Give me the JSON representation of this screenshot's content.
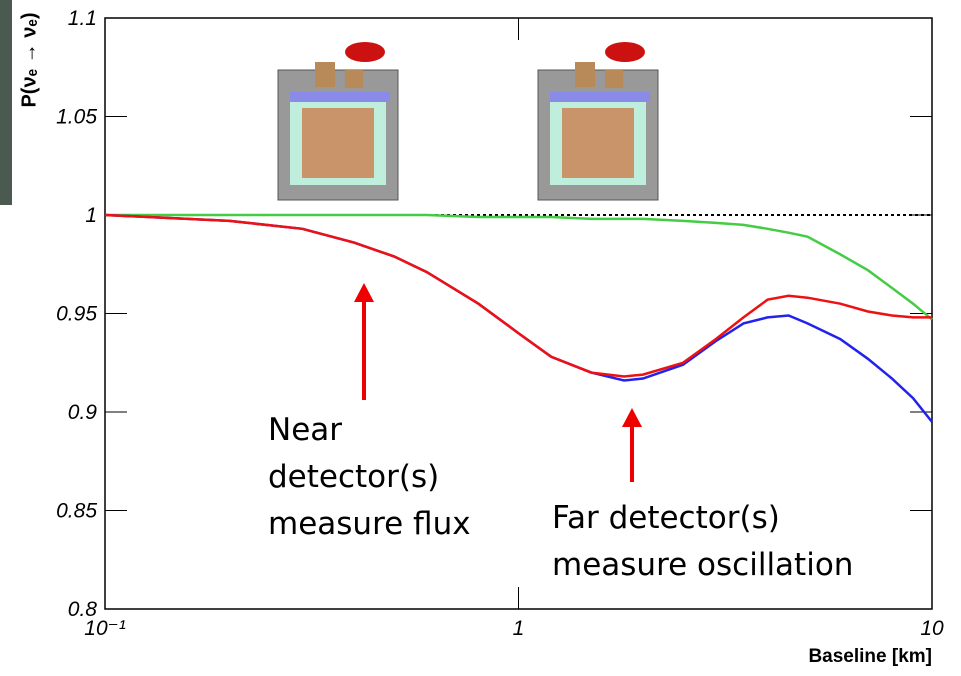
{
  "chart_data": {
    "type": "line",
    "y_label": "P(νₑ → νₑ)",
    "x_label": "Baseline [km]",
    "xscale": "log",
    "xlim": [
      0.1,
      10
    ],
    "xticks": [
      {
        "value": 0.1,
        "label": "10⁻¹"
      },
      1,
      10
    ],
    "ylim": [
      0.8,
      1.1
    ],
    "yticks": [
      0.8,
      0.85,
      0.9,
      0.95,
      1,
      1.05,
      1.1
    ],
    "hline": 1,
    "x": [
      0.1,
      0.2,
      0.3,
      0.4,
      0.5,
      0.6,
      0.8,
      1,
      1.2,
      1.5,
      1.8,
      2,
      2.5,
      3,
      3.5,
      4,
      4.5,
      5,
      6,
      7,
      8,
      9,
      10
    ],
    "series": [
      {
        "color": "#44cc44",
        "values": [
          1,
          1,
          1,
          1,
          1,
          1,
          0.999,
          0.999,
          0.999,
          0.998,
          0.998,
          0.998,
          0.997,
          0.996,
          0.995,
          0.993,
          0.991,
          0.989,
          0.98,
          0.972,
          0.963,
          0.955,
          0.947
        ]
      },
      {
        "color": "#2222ee",
        "values": [
          1,
          0.997,
          0.993,
          0.986,
          0.979,
          0.971,
          0.955,
          0.94,
          0.928,
          0.92,
          0.916,
          0.917,
          0.924,
          0.936,
          0.945,
          0.948,
          0.949,
          0.945,
          0.937,
          0.927,
          0.917,
          0.907,
          0.895
        ]
      },
      {
        "color": "#ee1111",
        "values": [
          1,
          0.997,
          0.993,
          0.986,
          0.979,
          0.971,
          0.955,
          0.94,
          0.928,
          0.92,
          0.918,
          0.919,
          0.925,
          0.937,
          0.948,
          0.957,
          0.959,
          0.958,
          0.955,
          0.951,
          0.949,
          0.948,
          0.948
        ]
      }
    ],
    "annotations": [
      {
        "lines": [
          "Near",
          "detector(s)",
          "measure  flux"
        ]
      },
      {
        "lines": [
          "Far detector(s)",
          "measure oscillation"
        ]
      }
    ]
  }
}
